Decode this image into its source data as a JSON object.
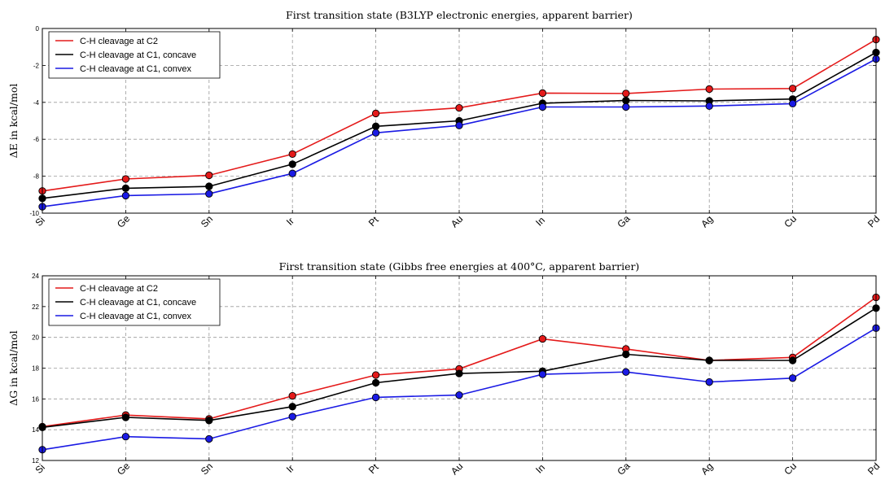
{
  "chart_data": [
    {
      "type": "line",
      "title": "First transition state (B3LYP electronic energies, apparent barrier)",
      "xlabel": "",
      "ylabel": "ΔE in kcal/mol",
      "categories": [
        "Si",
        "Ge",
        "Sn",
        "Ir",
        "Pt",
        "Au",
        "In",
        "Ga",
        "Ag",
        "Cu",
        "Pd"
      ],
      "ylim": [
        -10,
        0
      ],
      "yticks": [
        0,
        -2,
        -4,
        -6,
        -8,
        -10
      ],
      "grid": true,
      "legend_position": "top-left",
      "series": [
        {
          "name": "C-H cleavage at C2",
          "color": "#e41a1a",
          "values": [
            -8.8,
            -8.15,
            -7.95,
            -6.8,
            -4.6,
            -4.3,
            -3.5,
            -3.52,
            -3.28,
            -3.25,
            -0.6
          ]
        },
        {
          "name": "C-H cleavage at C1, concave",
          "color": "#000000",
          "values": [
            -9.2,
            -8.65,
            -8.55,
            -7.35,
            -5.3,
            -5.0,
            -4.05,
            -3.9,
            -3.92,
            -3.82,
            -1.3
          ]
        },
        {
          "name": "C-H cleavage at C1, convex",
          "color": "#1a1ae4",
          "values": [
            -9.65,
            -9.05,
            -8.95,
            -7.85,
            -5.65,
            -5.25,
            -4.25,
            -4.25,
            -4.2,
            -4.07,
            -1.65
          ]
        }
      ]
    },
    {
      "type": "line",
      "title": "First transition state (Gibbs free energies at 400°C, apparent barrier)",
      "xlabel": "",
      "ylabel": "ΔG in kcal/mol",
      "categories": [
        "Si",
        "Ge",
        "Sn",
        "Ir",
        "Pt",
        "Au",
        "In",
        "Ga",
        "Ag",
        "Cu",
        "Pd"
      ],
      "ylim": [
        12,
        24
      ],
      "yticks": [
        24,
        22,
        20,
        18,
        16,
        14,
        12
      ],
      "grid": true,
      "legend_position": "top-left",
      "series": [
        {
          "name": "C-H cleavage at C2",
          "color": "#e41a1a",
          "values": [
            14.2,
            14.95,
            14.7,
            16.2,
            17.55,
            17.95,
            19.9,
            19.25,
            18.5,
            18.7,
            22.6
          ]
        },
        {
          "name": "C-H cleavage at C1, concave",
          "color": "#000000",
          "values": [
            14.15,
            14.8,
            14.6,
            15.5,
            17.05,
            17.65,
            17.8,
            18.9,
            18.5,
            18.5,
            21.9
          ]
        },
        {
          "name": "C-H cleavage at C1, convex",
          "color": "#1a1ae4",
          "values": [
            12.7,
            13.55,
            13.4,
            14.85,
            16.1,
            16.25,
            17.6,
            17.75,
            17.1,
            17.35,
            20.6
          ]
        }
      ]
    }
  ]
}
